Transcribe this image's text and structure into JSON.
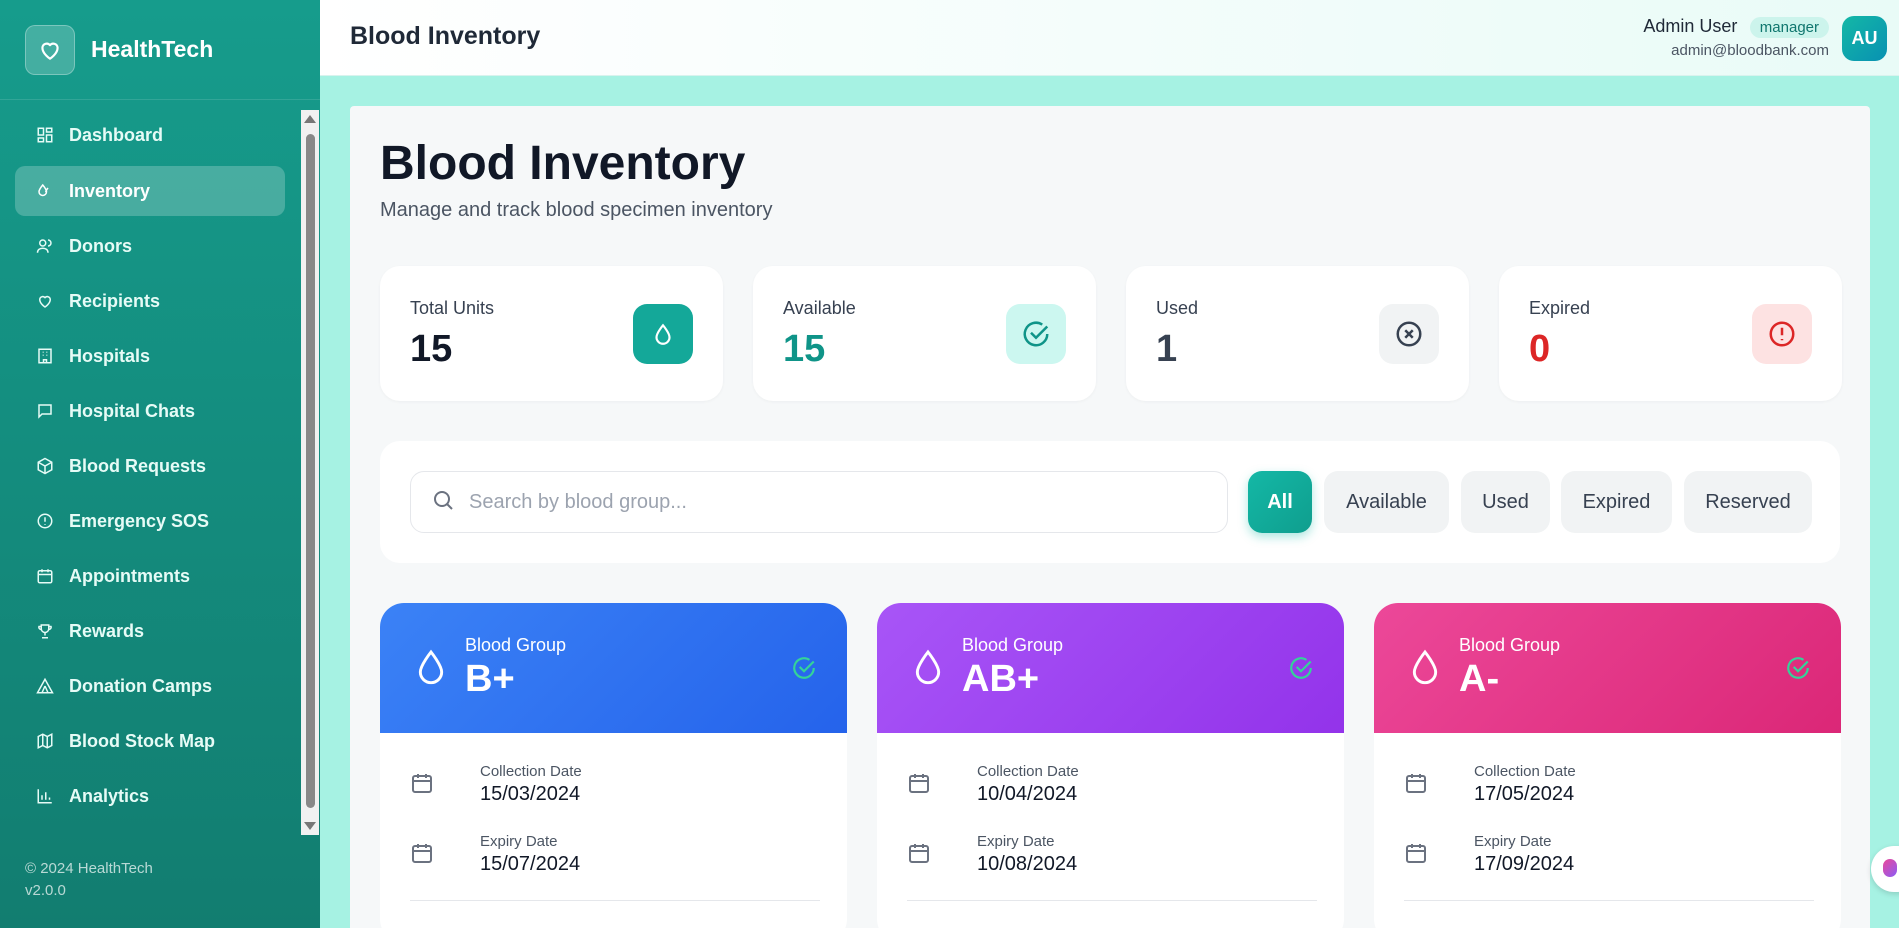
{
  "brand": {
    "name": "HealthTech"
  },
  "sidebar": {
    "items": [
      {
        "label": "Dashboard",
        "icon": "dashboard-icon",
        "active": false
      },
      {
        "label": "Inventory",
        "icon": "droplets-icon",
        "active": true
      },
      {
        "label": "Donors",
        "icon": "users-icon",
        "active": false
      },
      {
        "label": "Recipients",
        "icon": "heart-icon",
        "active": false
      },
      {
        "label": "Hospitals",
        "icon": "building-icon",
        "active": false
      },
      {
        "label": "Hospital Chats",
        "icon": "chat-icon",
        "active": false
      },
      {
        "label": "Blood Requests",
        "icon": "package-icon",
        "active": false
      },
      {
        "label": "Emergency SOS",
        "icon": "alert-circle-icon",
        "active": false
      },
      {
        "label": "Appointments",
        "icon": "calendar-icon",
        "active": false
      },
      {
        "label": "Rewards",
        "icon": "trophy-icon",
        "active": false
      },
      {
        "label": "Donation Camps",
        "icon": "tent-icon",
        "active": false
      },
      {
        "label": "Blood Stock Map",
        "icon": "map-icon",
        "active": false
      },
      {
        "label": "Analytics",
        "icon": "bar-chart-icon",
        "active": false
      }
    ],
    "footer": {
      "copyright": "© 2024 HealthTech",
      "version": "v2.0.0"
    }
  },
  "header": {
    "title": "Blood Inventory",
    "user": {
      "name": "Admin User",
      "role": "manager",
      "email": "admin@bloodbank.com",
      "initials": "AU"
    }
  },
  "main": {
    "title": "Blood Inventory",
    "subtitle": "Manage and track blood specimen inventory",
    "stats": [
      {
        "label": "Total Units",
        "value": "15",
        "color": "#111827",
        "icon": "droplet-icon",
        "icon_bg": "#14a899"
      },
      {
        "label": "Available",
        "value": "15",
        "color": "#0f9488",
        "icon": "check-circle-icon",
        "icon_bg": "#ccf7f0"
      },
      {
        "label": "Used",
        "value": "1",
        "color": "#374151",
        "icon": "x-circle-icon",
        "icon_bg": "#f1f3f4"
      },
      {
        "label": "Expired",
        "value": "0",
        "color": "#dc2626",
        "icon": "alert-icon",
        "icon_bg": "#fde2e2"
      }
    ],
    "search": {
      "placeholder": "Search by blood group..."
    },
    "filters": [
      "All",
      "Available",
      "Used",
      "Expired",
      "Reserved"
    ],
    "cards": [
      {
        "group_label": "Blood Group",
        "group": "B+",
        "collection_label": "Collection Date",
        "collection": "15/03/2024",
        "expiry_label": "Expiry Date",
        "expiry": "15/07/2024",
        "color_from": "#3b82f6",
        "color_to": "#2563eb"
      },
      {
        "group_label": "Blood Group",
        "group": "AB+",
        "collection_label": "Collection Date",
        "collection": "10/04/2024",
        "expiry_label": "Expiry Date",
        "expiry": "10/08/2024",
        "color_from": "#a855f7",
        "color_to": "#9333ea"
      },
      {
        "group_label": "Blood Group",
        "group": "A-",
        "collection_label": "Collection Date",
        "collection": "17/05/2024",
        "expiry_label": "Expiry Date",
        "expiry": "17/09/2024",
        "color_from": "#ec4899",
        "color_to": "#db2777"
      }
    ]
  }
}
